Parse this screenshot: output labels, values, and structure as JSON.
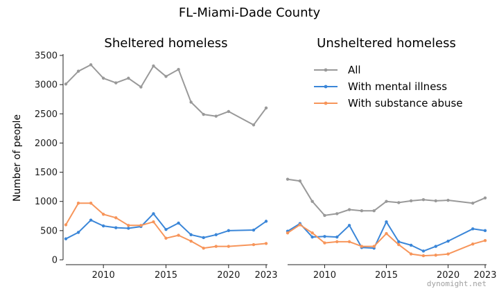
{
  "figure": {
    "title": "FL-Miami-Dade County",
    "ylabel": "Number of people",
    "watermark": "dynomight.net"
  },
  "legend": {
    "items": [
      {
        "name": "All",
        "color": "#999999"
      },
      {
        "name": "With mental illness",
        "color": "#3a86d8"
      },
      {
        "name": "With substance abuse",
        "color": "#f7955a"
      }
    ]
  },
  "chart_data": [
    {
      "type": "line",
      "title": "Sheltered homeless",
      "ylim": [
        0,
        3500
      ],
      "xlim": [
        2007,
        2023
      ],
      "yticks": [
        0,
        500,
        1000,
        1500,
        2000,
        2500,
        3000,
        3500
      ],
      "xticks": [
        2010,
        2015,
        2020,
        2023
      ],
      "series": [
        {
          "name": "All",
          "color": "#999999",
          "x": [
            2007,
            2008,
            2009,
            2010,
            2011,
            2012,
            2013,
            2014,
            2015,
            2016,
            2017,
            2018,
            2019,
            2020,
            2022,
            2023
          ],
          "y": [
            3010,
            3230,
            3340,
            3110,
            3030,
            3110,
            2960,
            3320,
            3140,
            3260,
            2700,
            2490,
            2460,
            2540,
            2310,
            2600
          ]
        },
        {
          "name": "With mental illness",
          "color": "#3a86d8",
          "x": [
            2007,
            2008,
            2009,
            2010,
            2011,
            2012,
            2013,
            2014,
            2015,
            2016,
            2017,
            2018,
            2019,
            2020,
            2022,
            2023
          ],
          "y": [
            360,
            470,
            680,
            580,
            550,
            540,
            570,
            790,
            520,
            630,
            430,
            380,
            430,
            500,
            510,
            660
          ]
        },
        {
          "name": "With substance abuse",
          "color": "#f7955a",
          "x": [
            2007,
            2008,
            2009,
            2010,
            2011,
            2012,
            2013,
            2014,
            2015,
            2016,
            2017,
            2018,
            2019,
            2020,
            2022,
            2023
          ],
          "y": [
            600,
            970,
            970,
            780,
            720,
            590,
            590,
            650,
            370,
            420,
            320,
            200,
            230,
            230,
            260,
            280
          ]
        }
      ]
    },
    {
      "type": "line",
      "title": "Unsheltered homeless",
      "ylim": [
        0,
        3500
      ],
      "xlim": [
        2007,
        2023
      ],
      "yticks": [],
      "xticks": [
        2010,
        2015,
        2020,
        2023
      ],
      "series": [
        {
          "name": "All",
          "color": "#999999",
          "x": [
            2007,
            2008,
            2009,
            2010,
            2011,
            2012,
            2013,
            2014,
            2015,
            2016,
            2017,
            2018,
            2019,
            2020,
            2022,
            2023
          ],
          "y": [
            1380,
            1350,
            1000,
            760,
            790,
            860,
            840,
            840,
            1000,
            980,
            1010,
            1030,
            1010,
            1020,
            970,
            1060
          ]
        },
        {
          "name": "With mental illness",
          "color": "#3a86d8",
          "x": [
            2007,
            2008,
            2009,
            2010,
            2011,
            2012,
            2013,
            2014,
            2015,
            2016,
            2017,
            2018,
            2019,
            2020,
            2022,
            2023
          ],
          "y": [
            490,
            620,
            390,
            400,
            390,
            590,
            210,
            200,
            650,
            310,
            250,
            150,
            230,
            320,
            530,
            500
          ]
        },
        {
          "name": "With substance abuse",
          "color": "#f7955a",
          "x": [
            2007,
            2008,
            2009,
            2010,
            2011,
            2012,
            2013,
            2014,
            2015,
            2016,
            2017,
            2018,
            2019,
            2020,
            2022,
            2023
          ],
          "y": [
            460,
            600,
            460,
            290,
            310,
            310,
            230,
            230,
            450,
            260,
            100,
            70,
            80,
            100,
            270,
            330
          ]
        }
      ]
    }
  ]
}
